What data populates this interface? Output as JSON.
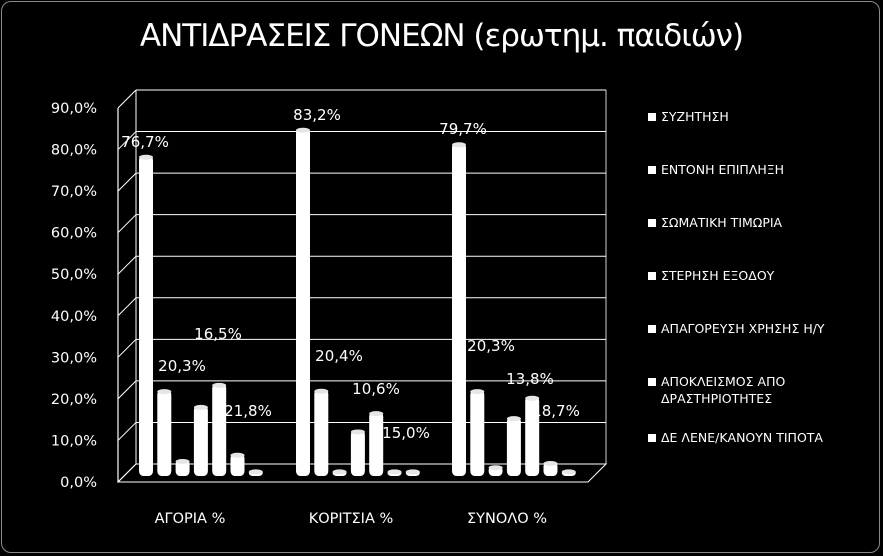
{
  "chart_data": {
    "type": "bar",
    "title": "ΑΝΤΙΔΡΑΣΕΙΣ ΓΟΝΕΩΝ (ερωτημ. παιδιών)",
    "categories": [
      "ΑΓΟΡΙΑ  %",
      "ΚΟΡΙΤΣΙΑ %",
      "ΣΥΝΟΛΟ %"
    ],
    "ylim": [
      0,
      90
    ],
    "ytick_labels": [
      "0,0%",
      "10,0%",
      "20,0%",
      "30,0%",
      "40,0%",
      "50,0%",
      "60,0%",
      "70,0%",
      "80,0%",
      "90,0%"
    ],
    "grid": true,
    "legend_position": "right",
    "series": [
      {
        "name": "ΣΥΖΗΤΗΣΗ",
        "values": [
          76.7,
          83.2,
          79.7
        ],
        "labels": [
          "76,7%",
          "83,2%",
          "79,7%"
        ]
      },
      {
        "name": "ΕΝΤΟΝΗ ΕΠΙΠΛΗΞΗ",
        "values": [
          20.3,
          20.4,
          20.3
        ],
        "labels": [
          "20,3%",
          "20,4%",
          "20,3%"
        ]
      },
      {
        "name": "ΣΩΜΑΤΙΚΗ ΤΙΜΩΡΙΑ",
        "values": [
          3.5,
          1.0,
          2.0
        ],
        "labels": [
          "",
          "",
          ""
        ]
      },
      {
        "name": "ΣΤΕΡΗΣΗ ΕΞΟΔΟΥ",
        "values": [
          16.5,
          10.6,
          13.8
        ],
        "labels": [
          "16,5%",
          "10,6%",
          "13,8%"
        ]
      },
      {
        "name": "ΑΠΑΓΟΡΕΥΣΗ ΧΡΗΣΗΣ Η/Υ",
        "values": [
          21.8,
          15.0,
          18.7
        ],
        "labels": [
          "21,8%",
          "15,0%",
          "18,7%"
        ]
      },
      {
        "name": "ΑΠΟΚΛΕΙΣΜΟΣ ΑΠΟ ΔΡΑΣΤΗΡΙΟΤΗΤΕΣ",
        "values": [
          5.0,
          1.0,
          3.0
        ],
        "labels": [
          "",
          "",
          ""
        ]
      },
      {
        "name": "ΔΕ ΛΕΝΕ/ΚΑΝΟΥΝ ΤΙΠΟΤΑ",
        "values": [
          1.0,
          1.0,
          1.0
        ],
        "labels": [
          "",
          "",
          ""
        ]
      }
    ],
    "legend_lines": [
      [
        "ΣΥΖΗΤΗΣΗ"
      ],
      [
        "ΕΝΤΟΝΗ ΕΠΙΠΛΗΞΗ"
      ],
      [
        "ΣΩΜΑΤΙΚΗ ΤΙΜΩΡΙΑ"
      ],
      [
        "ΣΤΕΡΗΣΗ ΕΞΟΔΟΥ"
      ],
      [
        "ΑΠΑΓΟΡΕΥΣΗ ΧΡΗΣΗΣ Η/Υ"
      ],
      [
        "ΑΠΟΚΛΕΙΣΜΟΣ ΑΠΟ",
        "ΔΡΑΣΤΗΡΙΟΤΗΤΕΣ"
      ],
      [
        "ΔΕ ΛΕΝΕ/ΚΑΝΟΥΝ ΤΙΠΟΤΑ"
      ]
    ],
    "colors": {
      "background": "#000000",
      "bars": "#ffffff",
      "grid": "#ffffff",
      "text": "#ffffff"
    }
  }
}
